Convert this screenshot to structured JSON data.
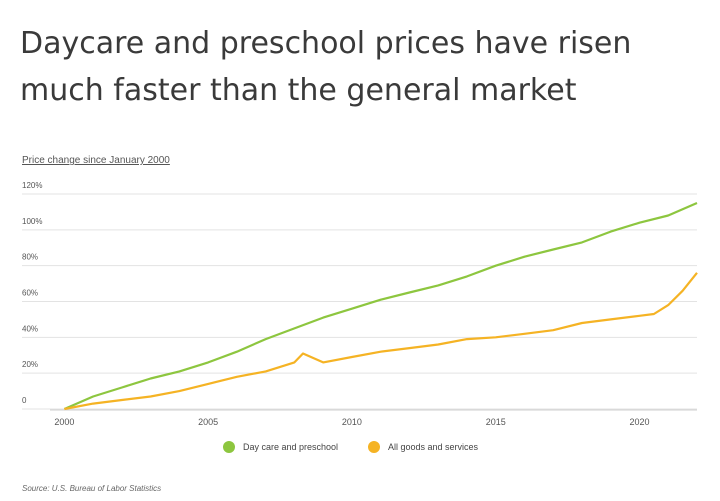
{
  "page": {
    "title": "Daycare and preschool prices have risen much faster than the general market",
    "subtitle": "Price change since January 2000",
    "source": "Source: U.S. Bureau of Labor Statistics"
  },
  "chart_data": {
    "type": "line",
    "title": "Daycare and preschool prices have risen much faster than the general market",
    "ylabel": "Price change since January 2000",
    "xlim": [
      1999.5,
      2022
    ],
    "ylim": [
      0,
      120
    ],
    "x_ticks": [
      2000,
      2005,
      2010,
      2015,
      2020
    ],
    "x_tick_labels": [
      "2000",
      "2005",
      "2010",
      "2015",
      "2020"
    ],
    "y_ticks": [
      0,
      20,
      40,
      60,
      80,
      100,
      120
    ],
    "y_tick_labels": [
      "0",
      "20%",
      "40%",
      "60%",
      "80%",
      "100%",
      "120%"
    ],
    "grid": true,
    "legend_position": "bottom",
    "series": [
      {
        "name": "Day care and preschool",
        "color": "#8dc63f",
        "x": [
          2000,
          2001,
          2002,
          2003,
          2004,
          2005,
          2006,
          2007,
          2008,
          2009,
          2010,
          2011,
          2012,
          2013,
          2014,
          2015,
          2016,
          2017,
          2018,
          2019,
          2020,
          2021,
          2022
        ],
        "y": [
          0,
          7,
          12,
          17,
          21,
          26,
          32,
          39,
          45,
          51,
          56,
          61,
          65,
          69,
          74,
          80,
          85,
          89,
          93,
          99,
          104,
          108,
          115
        ]
      },
      {
        "name": "All goods and services",
        "color": "#f5b324",
        "x": [
          2000,
          2001,
          2002,
          2003,
          2004,
          2005,
          2006,
          2007,
          2008,
          2008.3,
          2009,
          2010,
          2011,
          2012,
          2013,
          2014,
          2015,
          2016,
          2017,
          2018,
          2019,
          2020,
          2020.5,
          2021,
          2021.5,
          2022
        ],
        "y": [
          0,
          3,
          5,
          7,
          10,
          14,
          18,
          21,
          26,
          31,
          26,
          29,
          32,
          34,
          36,
          39,
          40,
          42,
          44,
          48,
          50,
          52,
          53,
          58,
          66,
          76
        ]
      }
    ]
  }
}
